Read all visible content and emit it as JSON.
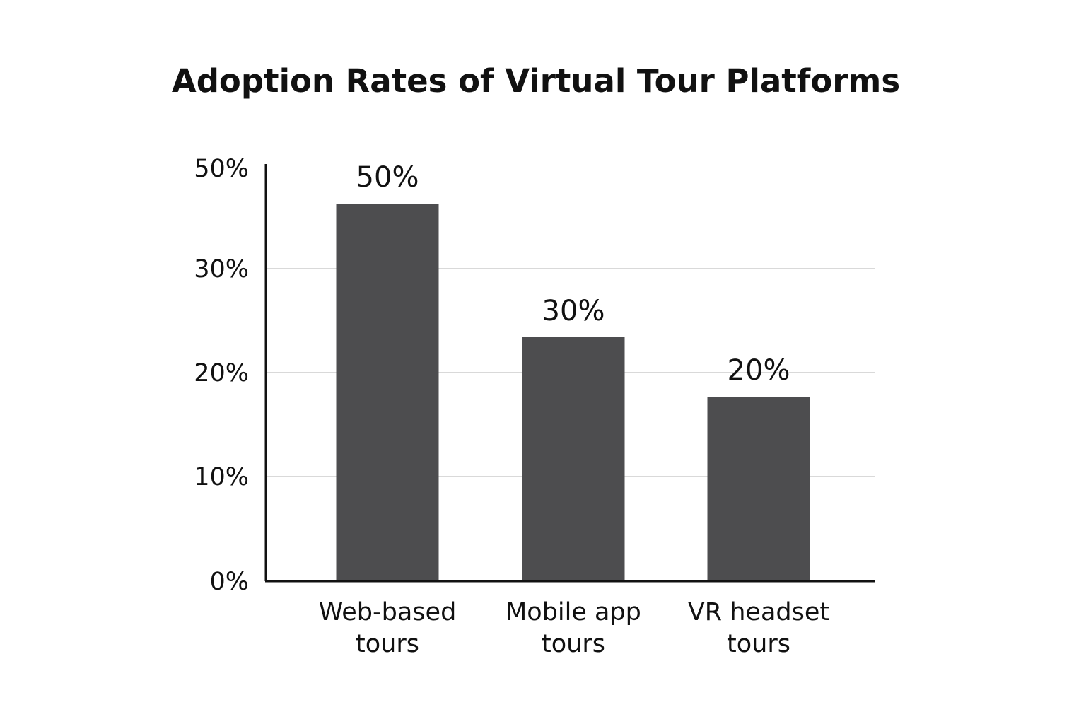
{
  "chart_data": {
    "type": "bar",
    "title": "Adoption Rates of Virtual Tour Platforms",
    "xlabel": "",
    "ylabel": "",
    "categories": [
      [
        "Web-based",
        "tours"
      ],
      [
        "Mobile app",
        "tours"
      ],
      [
        "VR headset",
        "tours"
      ]
    ],
    "values": [
      50,
      30,
      20
    ],
    "value_labels": [
      "50%",
      "30%",
      "20%"
    ],
    "y_ticks": [
      {
        "value": 0,
        "label": "0%"
      },
      {
        "value": 10,
        "label": "10%"
      },
      {
        "value": 20,
        "label": "20%"
      },
      {
        "value": 30,
        "label": "30%"
      },
      {
        "value": 50,
        "label": "50%"
      }
    ],
    "grid": true,
    "legend": "none",
    "colors": {
      "bar": "#4d4d4f",
      "grid": "#d9d9d9",
      "axis": "#111111",
      "text": "#111111"
    }
  }
}
